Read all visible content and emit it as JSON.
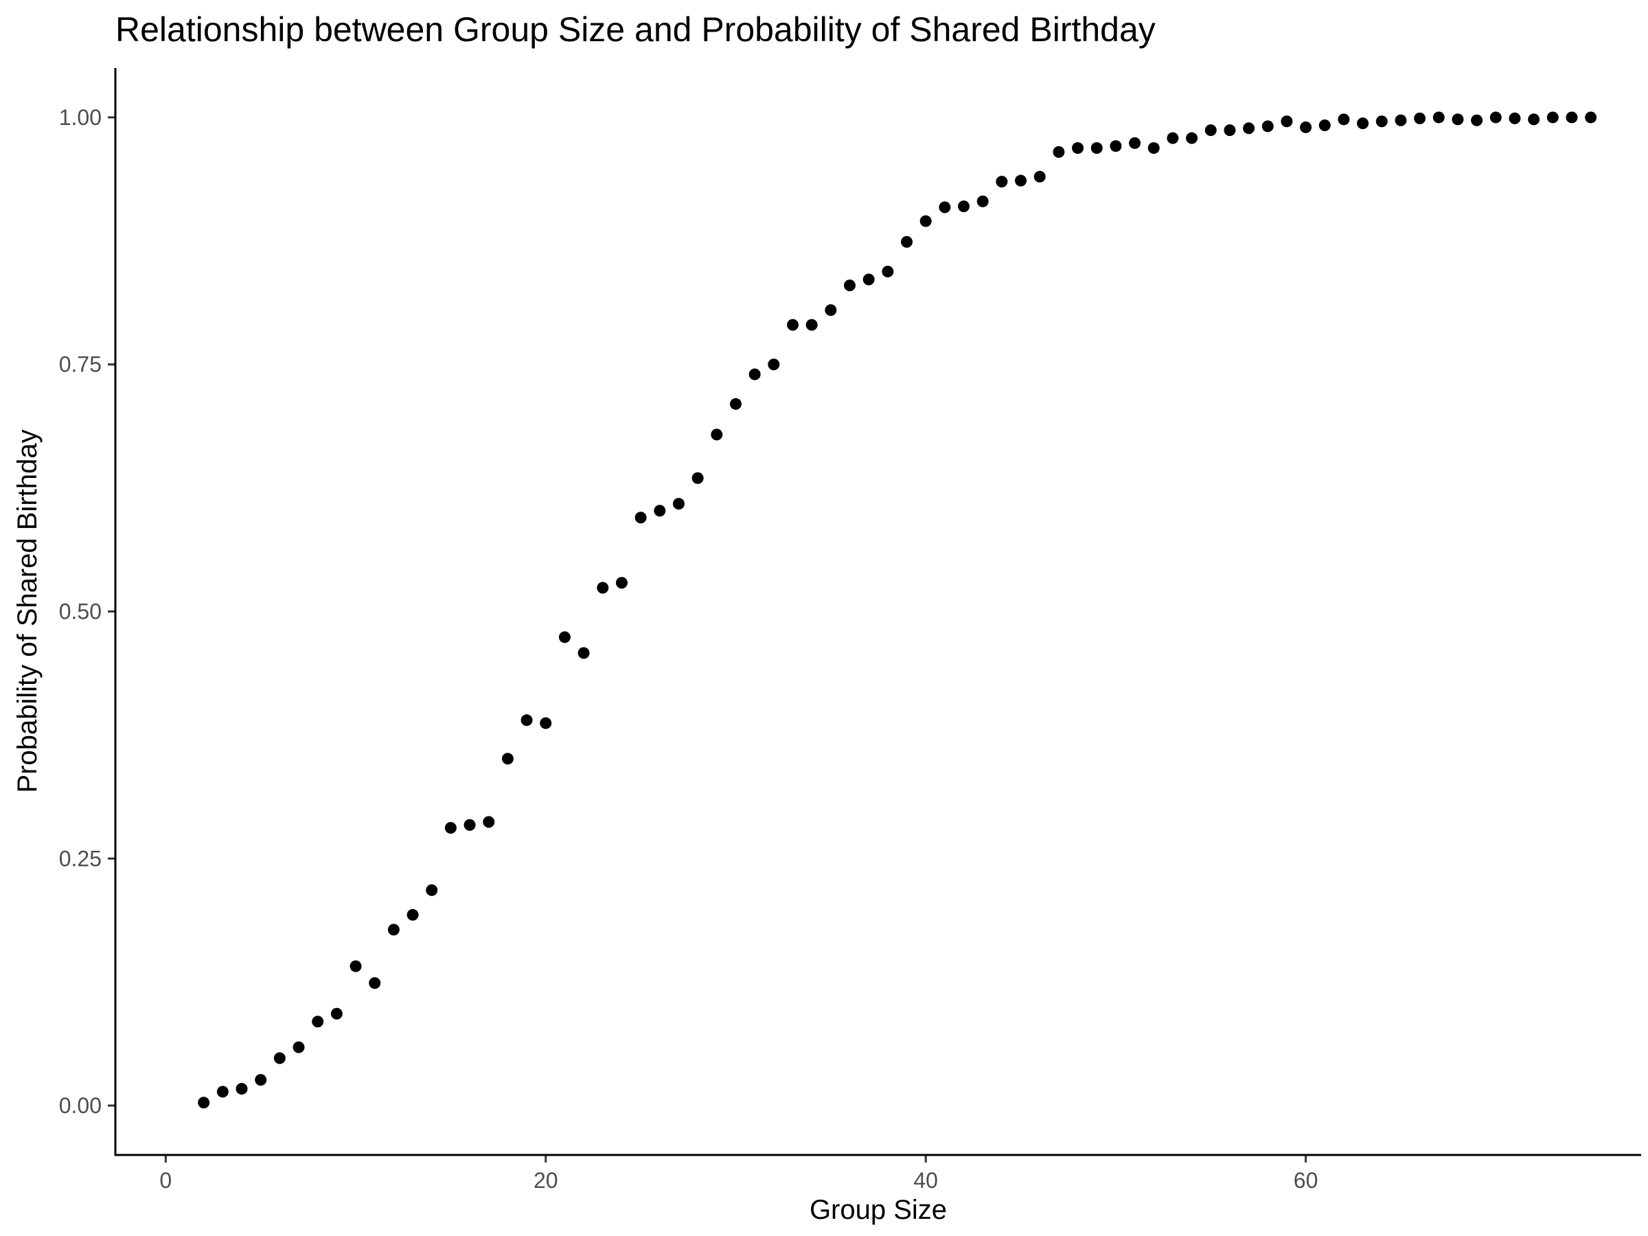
{
  "chart_data": {
    "type": "scatter",
    "title": "Relationship between Group Size and Probability of Shared Birthday",
    "xlabel": "Group Size",
    "ylabel": "Probability of Shared Birthday",
    "xlim": [
      -2.65,
      77.65
    ],
    "ylim": [
      -0.05,
      1.05
    ],
    "x_ticks": [
      0,
      20,
      40,
      60
    ],
    "x_tick_labels": [
      "0",
      "20",
      "40",
      "60"
    ],
    "y_ticks": [
      0,
      0.25,
      0.5,
      0.75,
      1
    ],
    "y_tick_labels": [
      "0.00",
      "0.25",
      "0.50",
      "0.75",
      "1.00"
    ],
    "grid": false,
    "legend": "none",
    "point_color": "#000000",
    "x": [
      2,
      3,
      4,
      5,
      6,
      7,
      8,
      9,
      10,
      11,
      12,
      13,
      14,
      15,
      16,
      17,
      18,
      19,
      20,
      21,
      22,
      23,
      24,
      25,
      26,
      27,
      28,
      29,
      30,
      31,
      32,
      33,
      34,
      35,
      36,
      37,
      38,
      39,
      40,
      41,
      42,
      43,
      44,
      45,
      46,
      47,
      48,
      49,
      50,
      51,
      52,
      53,
      54,
      55,
      56,
      57,
      58,
      59,
      60,
      61,
      62,
      63,
      64,
      65,
      66,
      67,
      68,
      69,
      70,
      71,
      72,
      73,
      74,
      75
    ],
    "y": [
      0.003,
      0.014,
      0.017,
      0.026,
      0.048,
      0.059,
      0.085,
      0.093,
      0.141,
      0.124,
      0.178,
      0.193,
      0.218,
      0.281,
      0.284,
      0.287,
      0.351,
      0.39,
      0.387,
      0.474,
      0.458,
      0.524,
      0.529,
      0.595,
      0.602,
      0.609,
      0.635,
      0.679,
      0.71,
      0.74,
      0.75,
      0.79,
      0.79,
      0.805,
      0.83,
      0.836,
      0.844,
      0.874,
      0.895,
      0.909,
      0.91,
      0.915,
      0.935,
      0.936,
      0.94,
      0.965,
      0.969,
      0.969,
      0.971,
      0.974,
      0.969,
      0.979,
      0.979,
      0.987,
      0.987,
      0.989,
      0.991,
      0.996,
      0.99,
      0.992,
      0.998,
      0.994,
      0.996,
      0.997,
      0.999,
      1.0,
      0.998,
      0.997,
      1.0,
      0.999,
      0.998,
      1.0,
      1.0,
      1.0
    ]
  }
}
